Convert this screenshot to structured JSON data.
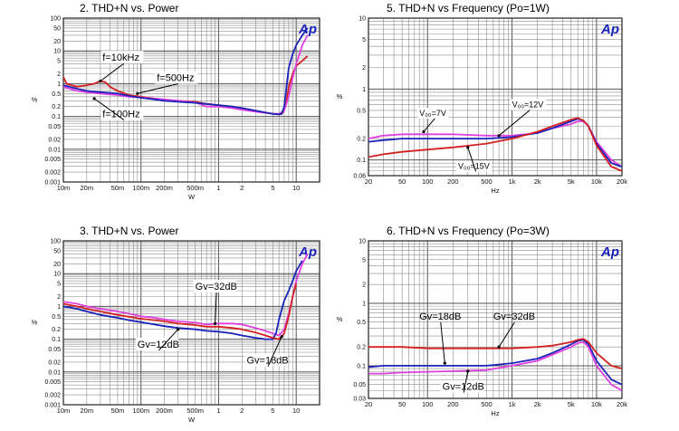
{
  "colors": {
    "blue": "#1a23b8",
    "red": "#d42020",
    "magenta": "#e040e0",
    "grid": "#8c8c8c",
    "frame": "#222222",
    "ap": "#1a23b8"
  },
  "logo_text": "Ap",
  "chart_data": [
    {
      "type": "line",
      "title": "2. THD+N vs. Power",
      "xlabel": "W",
      "ylabel": "%",
      "x_scale": "log",
      "y_scale": "log",
      "xlim": [
        0.01,
        20
      ],
      "ylim": [
        0.001,
        100
      ],
      "x_ticks": [
        0.01,
        0.02,
        0.05,
        0.1,
        0.2,
        0.5,
        1,
        2,
        5,
        10
      ],
      "x_tick_labels": [
        "10m",
        "20m",
        "50m",
        "100m",
        "200m",
        "500m",
        "1",
        "2",
        "5",
        "10"
      ],
      "y_ticks": [
        100,
        50,
        20,
        10,
        5,
        2,
        1,
        0.5,
        0.2,
        0.1,
        0.05,
        0.02,
        0.01,
        0.005,
        0.002,
        0.001
      ],
      "y_tick_labels": [
        "100",
        "50",
        "20",
        "10",
        "5",
        "2",
        "1",
        "0.5",
        "0.2",
        "0.1",
        "0.05",
        "0.02",
        "0.01",
        "0.005",
        "0.002",
        "0.001"
      ],
      "grid": true,
      "series": [
        {
          "name": "f=10kHz",
          "color": "red",
          "x": [
            0.01,
            0.011,
            0.015,
            0.02,
            0.025,
            0.03,
            0.035,
            0.04,
            0.05,
            0.07,
            0.1,
            0.15,
            0.2,
            0.3,
            0.5,
            0.7,
            1,
            1.5,
            2,
            3,
            4,
            5,
            6,
            6.5,
            7,
            7.5,
            8,
            9,
            10,
            12,
            14
          ],
          "y": [
            1.6,
            1.0,
            0.8,
            0.9,
            1.0,
            1.2,
            1.1,
            0.8,
            0.6,
            0.45,
            0.4,
            0.35,
            0.32,
            0.3,
            0.28,
            0.24,
            0.22,
            0.2,
            0.18,
            0.15,
            0.13,
            0.12,
            0.115,
            0.12,
            0.15,
            0.3,
            0.8,
            2,
            3.5,
            5,
            7
          ]
        },
        {
          "name": "f=500Hz",
          "color": "magenta",
          "x": [
            0.01,
            0.015,
            0.02,
            0.03,
            0.05,
            0.07,
            0.1,
            0.15,
            0.2,
            0.3,
            0.5,
            0.7,
            1,
            1.5,
            2,
            3,
            5,
            6,
            7,
            8,
            9,
            10,
            12,
            14
          ],
          "y": [
            0.8,
            0.6,
            0.55,
            0.5,
            0.45,
            0.4,
            0.38,
            0.35,
            0.33,
            0.3,
            0.27,
            0.2,
            0.2,
            0.18,
            0.16,
            0.14,
            0.12,
            0.12,
            0.15,
            0.4,
            1.5,
            4,
            15,
            30
          ]
        },
        {
          "name": "f=100Hz",
          "color": "blue",
          "x": [
            0.01,
            0.015,
            0.02,
            0.03,
            0.05,
            0.07,
            0.1,
            0.15,
            0.2,
            0.3,
            0.5,
            0.7,
            1,
            1.5,
            2,
            3,
            5,
            6,
            6.5,
            7,
            7.5,
            8,
            9,
            10,
            12,
            14
          ],
          "y": [
            0.9,
            0.7,
            0.6,
            0.55,
            0.5,
            0.42,
            0.37,
            0.33,
            0.3,
            0.28,
            0.26,
            0.24,
            0.22,
            0.2,
            0.18,
            0.15,
            0.12,
            0.115,
            0.12,
            0.2,
            0.8,
            3,
            8,
            15,
            30,
            50
          ]
        }
      ],
      "annotations": [
        {
          "text": "f=10kHz",
          "box": true,
          "lx": 0.032,
          "ly": 5,
          "tx": 0.03,
          "ty": 1.2
        },
        {
          "text": "f=500Hz",
          "box": true,
          "lx": 0.16,
          "ly": 1.2,
          "tx": 0.09,
          "ty": 0.5
        },
        {
          "text": "f=100Hz",
          "box": true,
          "lx": 0.032,
          "ly": 0.095,
          "tx": 0.025,
          "ty": 0.35
        }
      ]
    },
    {
      "type": "line",
      "title": "5. THD+N vs Frequency (Po=1W)",
      "xlabel": "Hz",
      "ylabel": "%",
      "x_scale": "log",
      "y_scale": "log",
      "xlim": [
        20,
        20000
      ],
      "ylim": [
        0.06,
        10
      ],
      "x_ticks": [
        20,
        50,
        100,
        200,
        500,
        1000,
        2000,
        5000,
        10000,
        20000
      ],
      "x_tick_labels": [
        "20",
        "50",
        "100",
        "200",
        "500",
        "1k",
        "2k",
        "5k",
        "10k",
        "20k"
      ],
      "y_ticks": [
        10,
        5,
        2,
        1,
        0.5,
        0.2,
        0.1,
        0.06
      ],
      "y_tick_labels": [
        "10",
        "5",
        "2",
        "1",
        "0.5",
        "0.2",
        "0.1",
        "0.06"
      ],
      "grid": true,
      "series": [
        {
          "name": "VDD=7V",
          "color": "magenta",
          "x": [
            20,
            30,
            50,
            100,
            200,
            500,
            1000,
            2000,
            3000,
            5000,
            6000,
            7000,
            8000,
            10000,
            15000,
            20000
          ],
          "y": [
            0.2,
            0.22,
            0.23,
            0.23,
            0.23,
            0.22,
            0.22,
            0.24,
            0.28,
            0.32,
            0.35,
            0.35,
            0.3,
            0.18,
            0.1,
            0.08
          ]
        },
        {
          "name": "VDD=12V",
          "color": "blue",
          "x": [
            20,
            30,
            50,
            100,
            200,
            500,
            1000,
            2000,
            3000,
            5000,
            6000,
            7000,
            8000,
            10000,
            15000,
            20000
          ],
          "y": [
            0.18,
            0.19,
            0.2,
            0.2,
            0.2,
            0.2,
            0.21,
            0.24,
            0.28,
            0.35,
            0.38,
            0.36,
            0.3,
            0.17,
            0.09,
            0.08
          ]
        },
        {
          "name": "VDD=15V",
          "color": "red",
          "x": [
            20,
            30,
            50,
            100,
            200,
            500,
            1000,
            2000,
            3000,
            5000,
            6000,
            7000,
            8000,
            10000,
            15000,
            20000
          ],
          "y": [
            0.11,
            0.12,
            0.13,
            0.14,
            0.15,
            0.17,
            0.2,
            0.25,
            0.3,
            0.37,
            0.39,
            0.36,
            0.3,
            0.16,
            0.08,
            0.07
          ]
        }
      ],
      "annotations": [
        {
          "text": "VDD=7V",
          "box": true,
          "lx": 80,
          "ly": 0.42,
          "tx": 90,
          "ty": 0.25
        },
        {
          "text": "VDD=12V",
          "box": true,
          "lx": 1000,
          "ly": 0.55,
          "tx": 700,
          "ty": 0.22
        },
        {
          "text": "VDD=15V",
          "box": true,
          "lx": 230,
          "ly": 0.075,
          "tx": 300,
          "ty": 0.15
        }
      ]
    },
    {
      "type": "line",
      "title": "3. THD+N vs. Power",
      "xlabel": "W",
      "ylabel": "%",
      "x_scale": "log",
      "y_scale": "log",
      "xlim": [
        0.01,
        20
      ],
      "ylim": [
        0.001,
        100
      ],
      "x_ticks": [
        0.01,
        0.02,
        0.05,
        0.1,
        0.2,
        0.5,
        1,
        2,
        5,
        10
      ],
      "x_tick_labels": [
        "10m",
        "20m",
        "50m",
        "100m",
        "200m",
        "500m",
        "1",
        "2",
        "5",
        "10"
      ],
      "y_ticks": [
        100,
        50,
        20,
        10,
        5,
        2,
        1,
        0.5,
        0.2,
        0.1,
        0.05,
        0.02,
        0.01,
        0.005,
        0.002,
        0.001
      ],
      "y_tick_labels": [
        "100",
        "50",
        "20",
        "10",
        "5",
        "2",
        "1",
        "0.5",
        "0.2",
        "0.1",
        "0.05",
        "0.02",
        "0.01",
        "0.005",
        "0.002",
        "0.001"
      ],
      "grid": true,
      "series": [
        {
          "name": "Gv=32dB",
          "color": "magenta",
          "x": [
            0.01,
            0.015,
            0.02,
            0.03,
            0.05,
            0.07,
            0.1,
            0.15,
            0.2,
            0.3,
            0.5,
            0.7,
            1,
            1.5,
            2,
            3,
            4,
            5,
            6,
            7,
            8,
            9,
            10,
            12,
            14
          ],
          "y": [
            1.4,
            1.2,
            1.0,
            0.85,
            0.7,
            0.6,
            0.5,
            0.45,
            0.4,
            0.35,
            0.32,
            0.28,
            0.3,
            0.3,
            0.28,
            0.22,
            0.18,
            0.15,
            0.13,
            0.2,
            0.6,
            2,
            6,
            20,
            40
          ]
        },
        {
          "name": "Gv=12dB",
          "color": "blue",
          "x": [
            0.01,
            0.015,
            0.02,
            0.03,
            0.05,
            0.07,
            0.1,
            0.15,
            0.2,
            0.3,
            0.5,
            0.7,
            1,
            1.5,
            2,
            3,
            4,
            5,
            5.5,
            6,
            7,
            8,
            9,
            10,
            12
          ],
          "y": [
            1.0,
            0.85,
            0.7,
            0.55,
            0.45,
            0.38,
            0.33,
            0.28,
            0.25,
            0.22,
            0.2,
            0.18,
            0.17,
            0.15,
            0.13,
            0.11,
            0.1,
            0.1,
            0.15,
            0.4,
            1.5,
            3,
            6,
            12,
            25
          ]
        },
        {
          "name": "Gv=18dB",
          "color": "red",
          "x": [
            0.01,
            0.015,
            0.02,
            0.03,
            0.05,
            0.07,
            0.1,
            0.15,
            0.2,
            0.3,
            0.5,
            0.7,
            1,
            1.5,
            2,
            3,
            4,
            5,
            6,
            7,
            8,
            9,
            10
          ],
          "y": [
            1.2,
            1.0,
            0.85,
            0.7,
            0.55,
            0.48,
            0.42,
            0.38,
            0.35,
            0.3,
            0.27,
            0.24,
            0.24,
            0.22,
            0.2,
            0.16,
            0.13,
            0.11,
            0.1,
            0.15,
            0.5,
            2,
            5
          ]
        }
      ],
      "annotations": [
        {
          "text": "Gv=32dB",
          "box": true,
          "lx": 0.5,
          "ly": 3.2,
          "tx": 0.9,
          "ty": 0.3
        },
        {
          "text": "Gv=12dB",
          "box": true,
          "lx": 0.09,
          "ly": 0.055,
          "tx": 0.3,
          "ty": 0.2
        },
        {
          "text": "Gv=18dB",
          "box": true,
          "lx": 2.3,
          "ly": 0.018,
          "tx": 6.5,
          "ty": 0.12
        }
      ]
    },
    {
      "type": "line",
      "title": "6. THD+N vs Frequency (Po=3W)",
      "xlabel": "Hz",
      "ylabel": "%",
      "x_scale": "log",
      "y_scale": "log",
      "xlim": [
        20,
        20000
      ],
      "ylim": [
        0.03,
        10
      ],
      "x_ticks": [
        20,
        50,
        100,
        200,
        500,
        1000,
        2000,
        5000,
        10000,
        20000
      ],
      "x_tick_labels": [
        "20",
        "50",
        "100",
        "200",
        "500",
        "1k",
        "2k",
        "5k",
        "10k",
        "20k"
      ],
      "y_ticks": [
        10,
        5,
        2,
        1,
        0.5,
        0.2,
        0.1,
        0.05,
        0.03
      ],
      "y_tick_labels": [
        "10",
        "5",
        "2",
        "1",
        "0.5",
        "0.2",
        "0.1",
        "0.05",
        "0.03"
      ],
      "grid": true,
      "series": [
        {
          "name": "Gv=18dB",
          "color": "blue",
          "x": [
            20,
            30,
            50,
            100,
            200,
            500,
            1000,
            2000,
            3000,
            5000,
            6000,
            7000,
            8000,
            10000,
            15000,
            20000
          ],
          "y": [
            0.095,
            0.1,
            0.1,
            0.1,
            0.1,
            0.1,
            0.11,
            0.13,
            0.16,
            0.22,
            0.25,
            0.26,
            0.22,
            0.12,
            0.06,
            0.05
          ]
        },
        {
          "name": "Gv=32dB",
          "color": "red",
          "x": [
            20,
            30,
            50,
            100,
            200,
            500,
            1000,
            2000,
            3000,
            5000,
            6000,
            7000,
            8000,
            10000,
            15000,
            20000
          ],
          "y": [
            0.2,
            0.2,
            0.2,
            0.19,
            0.19,
            0.19,
            0.19,
            0.2,
            0.21,
            0.24,
            0.26,
            0.27,
            0.24,
            0.16,
            0.1,
            0.09
          ]
        },
        {
          "name": "Gv=12dB",
          "color": "magenta",
          "x": [
            20,
            30,
            50,
            100,
            200,
            500,
            1000,
            2000,
            3000,
            5000,
            6000,
            7000,
            8000,
            10000,
            15000,
            20000
          ],
          "y": [
            0.075,
            0.075,
            0.078,
            0.08,
            0.082,
            0.085,
            0.1,
            0.12,
            0.15,
            0.2,
            0.23,
            0.24,
            0.2,
            0.1,
            0.05,
            0.04
          ]
        }
      ],
      "annotations": [
        {
          "text": "Gv=18dB",
          "box": false,
          "lx": 80,
          "ly": 0.55,
          "tx": 160,
          "ty": 0.11
        },
        {
          "text": "Gv=32dB",
          "box": false,
          "lx": 600,
          "ly": 0.55,
          "tx": 700,
          "ty": 0.2
        },
        {
          "text": "Gv=12dB",
          "box": true,
          "lx": 150,
          "ly": 0.041,
          "tx": 300,
          "ty": 0.082
        }
      ]
    }
  ]
}
